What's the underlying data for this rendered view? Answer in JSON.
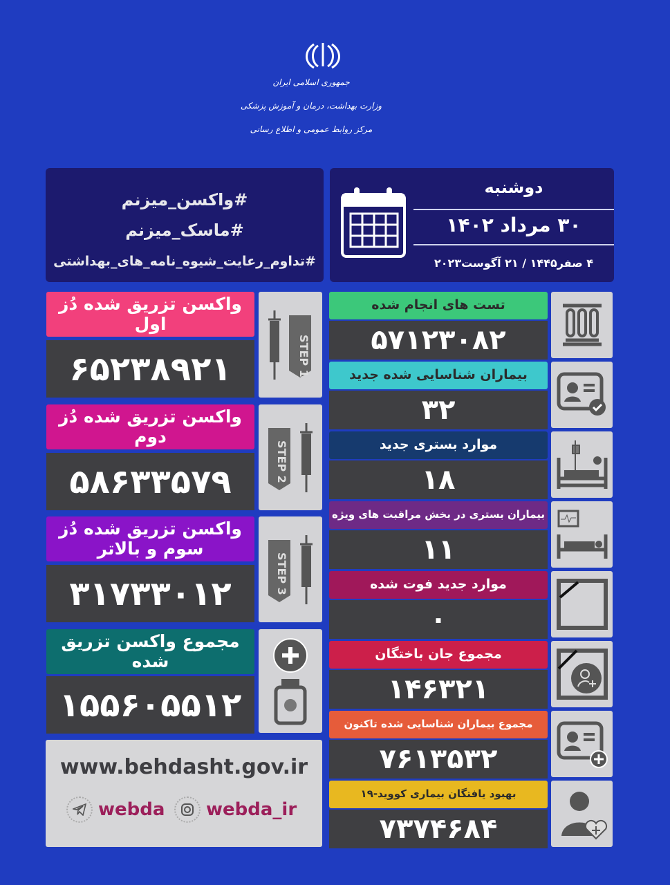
{
  "header": {
    "org_lines": [
      "جمهوری اسلامی ایران",
      "وزارت بهداشت، درمان و آموزش پزشکی",
      "مرکز روابط عمومی و اطلاع رسانی"
    ]
  },
  "hashtags": [
    "#واکسن_میزنم",
    "#ماسک_میزنم",
    "#تداوم_رعایت_شیوه_نامه_های_بهداشتی"
  ],
  "date": {
    "weekday": "دوشنبه",
    "solar": "۳۰ مرداد ۱۴۰۲",
    "other": "۴ صفر۱۴۴۵ / ۲۱ آگوست۲۰۲۳"
  },
  "vaccines": [
    {
      "label": "واکسن تزریق شده دُز اول",
      "value": "۶۵۲۳۸۹۲۱",
      "step": "STEP 1",
      "color": "#f2407c",
      "icon": "syringe-step1-icon"
    },
    {
      "label": "واکسن تزریق شده دُز دوم",
      "value": "۵۸۶۳۳۵۷۹",
      "step": "STEP 2",
      "color": "#d0168f",
      "icon": "syringe-step2-icon"
    },
    {
      "label": "واکسن تزریق شده دُز سوم و بالاتر",
      "value": "۳۱۷۳۳۰۱۲",
      "step": "STEP 3",
      "color": "#8a14c8",
      "icon": "syringe-step3-icon"
    },
    {
      "label": "مجموع واکسن تزریق شده",
      "value": "۱۵۵۶۰۵۵۱۲",
      "color": "#0d6e6e",
      "icon": "vaccine-vial-plus-icon"
    }
  ],
  "stats": [
    {
      "label": "تست های انجام شده",
      "value": "۵۷۱۲۳۰۸۲",
      "color": "#3cc87a",
      "text_color": "#2b2b2b",
      "icon": "test-tubes-icon"
    },
    {
      "label": "بیماران شناسایی شده جدید",
      "value": "۳۲",
      "color": "#3ec8cc",
      "text_color": "#2b2b2b",
      "icon": "patient-card-check-icon"
    },
    {
      "label": "موارد بستری جدید",
      "value": "۱۸",
      "color": "#163a6e",
      "text_color": "#ffffff",
      "icon": "hospital-bed-icon"
    },
    {
      "label": "بیماران بستری در بخش مراقبت های ویژه",
      "value": "۱۱",
      "color": "#6e2a86",
      "text_color": "#ffffff",
      "icon": "icu-bed-monitor-icon"
    },
    {
      "label": "موارد جدید فوت شده",
      "value": "۰",
      "color": "#a0185a",
      "text_color": "#ffffff",
      "icon": "mourning-frame-icon"
    },
    {
      "label": "مجموع جان باختگان",
      "value": "۱۴۶۳۲۱",
      "color": "#cc1f4a",
      "text_color": "#ffffff",
      "icon": "mourning-person-icon"
    },
    {
      "label": "مجموع بیماران شناسایی شده تاکنون",
      "value": "۷۶۱۳۵۳۲",
      "color": "#e65c3a",
      "text_color": "#ffffff",
      "icon": "patient-card-plus-icon"
    },
    {
      "label": "بهبود یافتگان بیماری کووید-۱۹",
      "value": "۷۳۷۴۶۸۴",
      "color": "#e8b820",
      "text_color": "#2b2b2b",
      "icon": "recovered-person-heart-icon"
    }
  ],
  "footer": {
    "website": "www.behdasht.gov.ir",
    "telegram": "webda",
    "instagram": "webda_ir"
  }
}
